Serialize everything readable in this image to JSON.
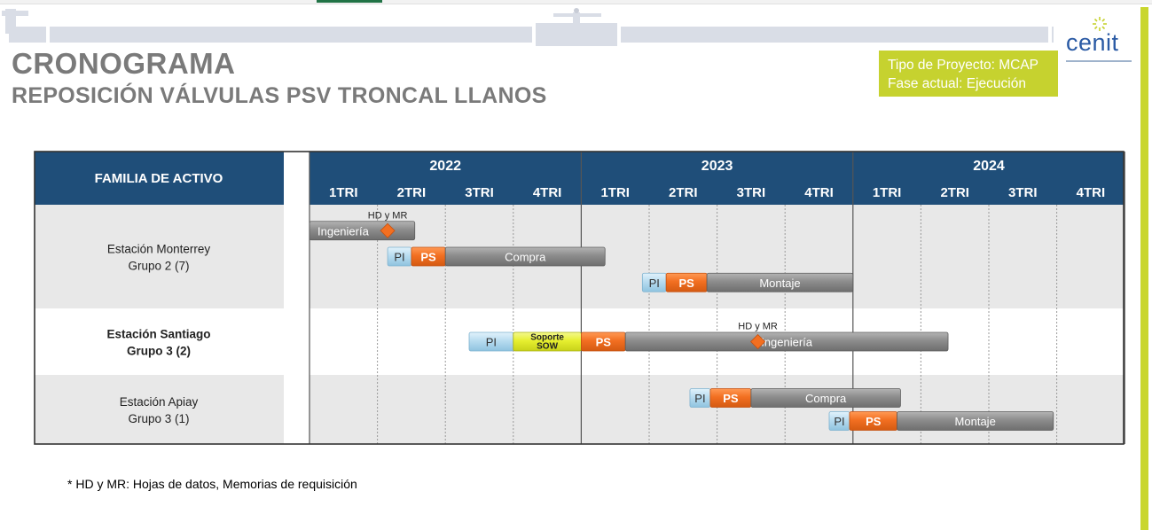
{
  "header": {
    "title": "CRONOGRAMA",
    "subtitle": "REPOSICIÓN VÁLVULAS PSV TRONCAL LLANOS",
    "project_type": "Tipo de Proyecto: MCAP",
    "current_phase": "Fase actual: Ejecución",
    "logo_text": "cenit"
  },
  "colors": {
    "header_bg": "#1f4e79",
    "pi": "#b8dcf0",
    "ps": "#f26f21",
    "task": "#8c8c8c",
    "soporte": "#e6ef2f",
    "milestone": "#f26f21",
    "accent": "#c6d22f",
    "row_shade": "#e8e8e8"
  },
  "footnote": "* HD y MR: Hojas de datos, Memorias de requisición",
  "chart_data": {
    "type": "gantt",
    "row_header": "FAMILIA DE ACTIVO",
    "years": [
      "2022",
      "2023",
      "2024"
    ],
    "quarters": [
      "1TRI",
      "2TRI",
      "3TRI",
      "4TRI"
    ],
    "rows": [
      {
        "name": "Estación Monterrey",
        "group": "Grupo 2 (7)",
        "shaded": true,
        "bold": false,
        "tracks": [
          [
            {
              "kind": "task",
              "label": "Ingeniería",
              "start": 0.0,
              "end": 1.55,
              "label_align": "left"
            }
          ],
          [
            {
              "kind": "pi",
              "label": "PI",
              "start": 1.15,
              "end": 1.5
            },
            {
              "kind": "ps",
              "label": "PS",
              "start": 1.5,
              "end": 2.0
            },
            {
              "kind": "task",
              "label": "Compra",
              "start": 2.0,
              "end": 4.35
            }
          ],
          [
            {
              "kind": "pi",
              "label": "PI",
              "start": 4.9,
              "end": 5.25
            },
            {
              "kind": "ps",
              "label": "PS",
              "start": 5.25,
              "end": 5.85
            },
            {
              "kind": "task",
              "label": "Montaje",
              "start": 5.85,
              "end": 8.0
            }
          ]
        ],
        "milestones": [
          {
            "label": "HD y MR",
            "at": 1.15,
            "track": 0
          }
        ]
      },
      {
        "name": "Estación Santiago",
        "group": "Grupo 3 (2)",
        "shaded": false,
        "bold": true,
        "tracks": [
          [
            {
              "kind": "pi",
              "label": "PI",
              "start": 2.35,
              "end": 3.0
            },
            {
              "kind": "soporte",
              "label": "Soporte SOW",
              "start": 3.0,
              "end": 4.0
            },
            {
              "kind": "ps",
              "label": "PS",
              "start": 4.0,
              "end": 4.65
            },
            {
              "kind": "task",
              "label": "Ingeniería",
              "start": 4.65,
              "end": 9.4
            }
          ]
        ],
        "milestones": [
          {
            "label": "HD y MR",
            "at": 6.6,
            "track": 0
          }
        ]
      },
      {
        "name": "Estación Apiay",
        "group": "Grupo 3 (1)",
        "shaded": true,
        "bold": false,
        "tracks": [
          [
            {
              "kind": "pi",
              "label": "PI",
              "start": 5.6,
              "end": 5.9
            },
            {
              "kind": "ps",
              "label": "PS",
              "start": 5.9,
              "end": 6.5
            },
            {
              "kind": "task",
              "label": "Compra",
              "start": 6.5,
              "end": 8.7
            }
          ],
          [
            {
              "kind": "pi",
              "label": "PI",
              "start": 7.65,
              "end": 7.95
            },
            {
              "kind": "ps",
              "label": "PS",
              "start": 7.95,
              "end": 8.65
            },
            {
              "kind": "task",
              "label": "Montaje",
              "start": 8.65,
              "end": 10.95
            }
          ]
        ],
        "milestones": []
      }
    ]
  }
}
